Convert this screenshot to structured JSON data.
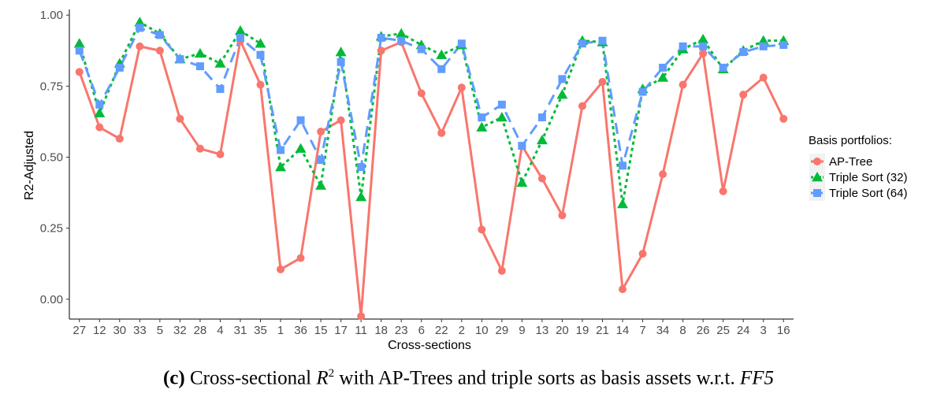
{
  "caption": {
    "label": "(c)",
    "pre": "Cross-sectional ",
    "math_var": "R",
    "superscript": "2",
    "post": " with AP-Trees and triple sorts as basis assets w.r.t. ",
    "model": "FF5"
  },
  "chart_data": {
    "type": "line",
    "xlabel": "Cross-sections",
    "ylabel": "R2-Adjusted",
    "ylim": [
      -0.07,
      1.02
    ],
    "yticks": [
      "0.00",
      "0.25",
      "0.50",
      "0.75",
      "1.00"
    ],
    "grid": false,
    "legend_position": "right",
    "legend_title": "Basis portfolios:",
    "categories": [
      "27",
      "12",
      "30",
      "33",
      "5",
      "32",
      "28",
      "4",
      "31",
      "35",
      "1",
      "36",
      "15",
      "17",
      "11",
      "18",
      "23",
      "6",
      "22",
      "2",
      "10",
      "29",
      "9",
      "13",
      "20",
      "19",
      "21",
      "14",
      "7",
      "34",
      "8",
      "26",
      "25",
      "24",
      "3",
      "16"
    ],
    "series": [
      {
        "name": "AP-Tree",
        "color": "#f8766d",
        "marker": "circle",
        "dash": "solid",
        "values": [
          0.8,
          0.605,
          0.565,
          0.89,
          0.875,
          0.635,
          0.53,
          0.51,
          0.91,
          0.755,
          0.105,
          0.145,
          0.59,
          0.63,
          -0.06,
          0.875,
          0.905,
          0.725,
          0.585,
          0.745,
          0.245,
          0.1,
          0.54,
          0.425,
          0.295,
          0.68,
          0.765,
          0.035,
          0.16,
          0.44,
          0.755,
          0.865,
          0.38,
          0.72,
          0.78,
          0.635
        ]
      },
      {
        "name": "Triple Sort (32)",
        "color": "#00ba38",
        "marker": "triangle",
        "dash": "dotted",
        "values": [
          0.9,
          0.655,
          0.83,
          0.975,
          0.935,
          0.845,
          0.865,
          0.83,
          0.945,
          0.9,
          0.465,
          0.53,
          0.4,
          0.87,
          0.36,
          0.925,
          0.935,
          0.895,
          0.86,
          0.895,
          0.605,
          0.64,
          0.41,
          0.56,
          0.72,
          0.91,
          0.905,
          0.335,
          0.74,
          0.78,
          0.88,
          0.915,
          0.81,
          0.875,
          0.91,
          0.91
        ]
      },
      {
        "name": "Triple Sort (64)",
        "color": "#619cff",
        "marker": "square",
        "dash": "dashed",
        "values": [
          0.875,
          0.685,
          0.815,
          0.955,
          0.93,
          0.845,
          0.82,
          0.74,
          0.92,
          0.86,
          0.525,
          0.63,
          0.49,
          0.835,
          0.465,
          0.92,
          0.91,
          0.88,
          0.81,
          0.9,
          0.64,
          0.685,
          0.54,
          0.64,
          0.775,
          0.9,
          0.91,
          0.47,
          0.73,
          0.815,
          0.89,
          0.89,
          0.815,
          0.87,
          0.89,
          0.895
        ]
      }
    ]
  }
}
